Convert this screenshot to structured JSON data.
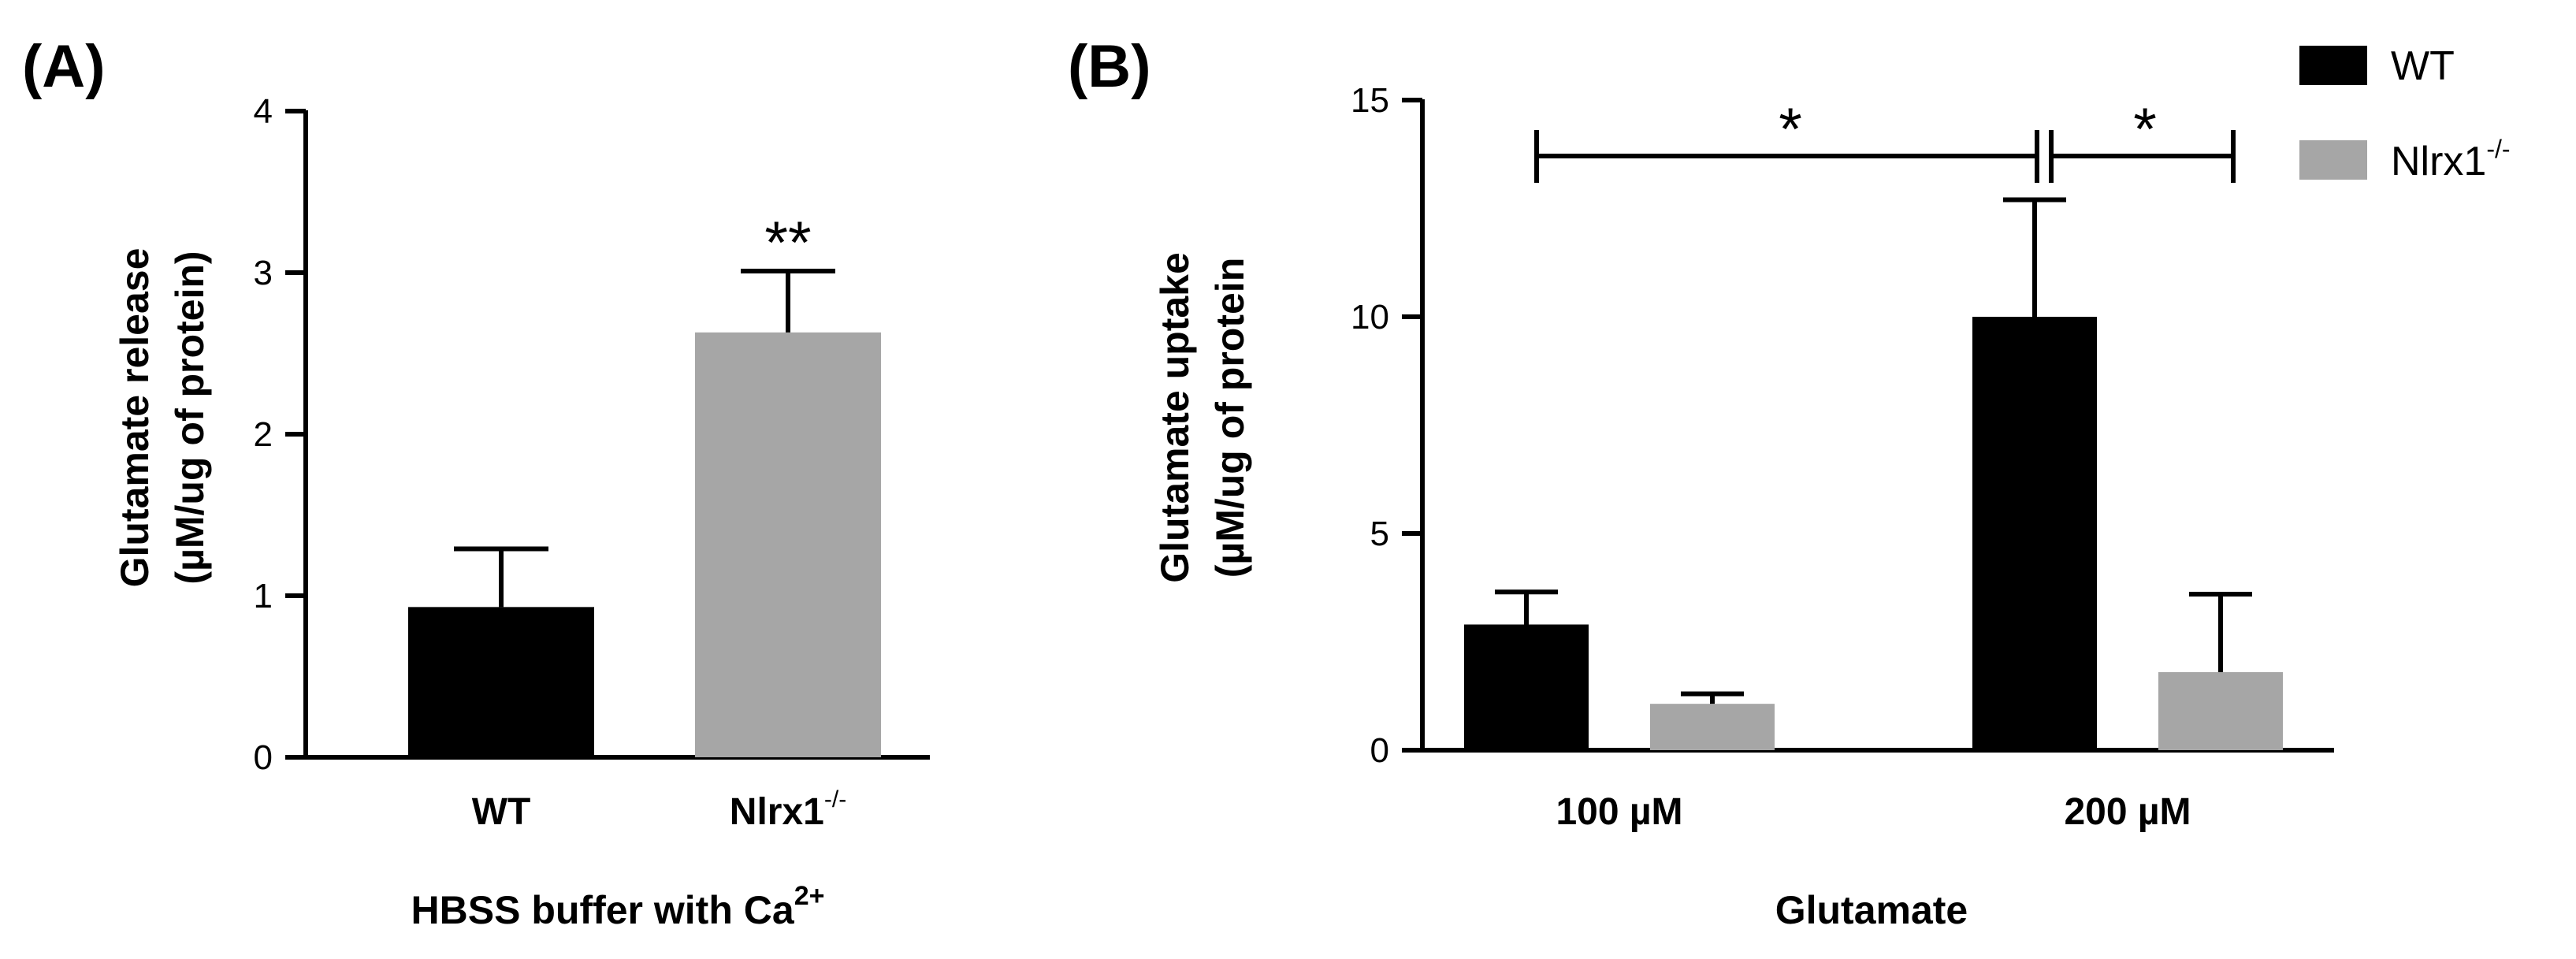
{
  "chart_data": [
    {
      "type": "bar",
      "panel_label": "(A)",
      "categories": [
        "WT",
        "Nlrx1"
      ],
      "category_superscripts": [
        "",
        "-/-"
      ],
      "values": [
        0.93,
        2.63
      ],
      "errors": [
        0.36,
        0.38
      ],
      "colors": [
        "#000000",
        "#a6a6a6"
      ],
      "ylim": [
        0,
        4
      ],
      "yticks": [
        "0",
        "1",
        "2",
        "3",
        "4"
      ],
      "ylabel_line1": "Glutamate release",
      "ylabel_line2": "(µM/ug of protein)",
      "xlabel": "HBSS buffer with Ca",
      "xlabel_superscript": "2+",
      "annotation": "**"
    },
    {
      "type": "bar",
      "panel_label": "(B)",
      "categories": [
        "100 µM",
        "200 µM"
      ],
      "series": [
        {
          "name": "WT",
          "values": [
            2.9,
            10.0
          ],
          "errors": [
            0.75,
            2.7
          ],
          "color": "#000000"
        },
        {
          "name": "Nlrx1",
          "name_superscript": "-/-",
          "values": [
            1.07,
            1.8
          ],
          "errors": [
            0.23,
            1.8
          ],
          "color": "#a6a6a6"
        }
      ],
      "ylim": [
        0,
        15
      ],
      "yticks": [
        "0",
        "5",
        "10",
        "15"
      ],
      "ylabel_line1": "Glutamate uptake",
      "ylabel_line2": "(µM/ug of protein",
      "xlabel": "Glutamate",
      "significance": [
        "*",
        "*"
      ],
      "legend_position": "top-right"
    }
  ]
}
